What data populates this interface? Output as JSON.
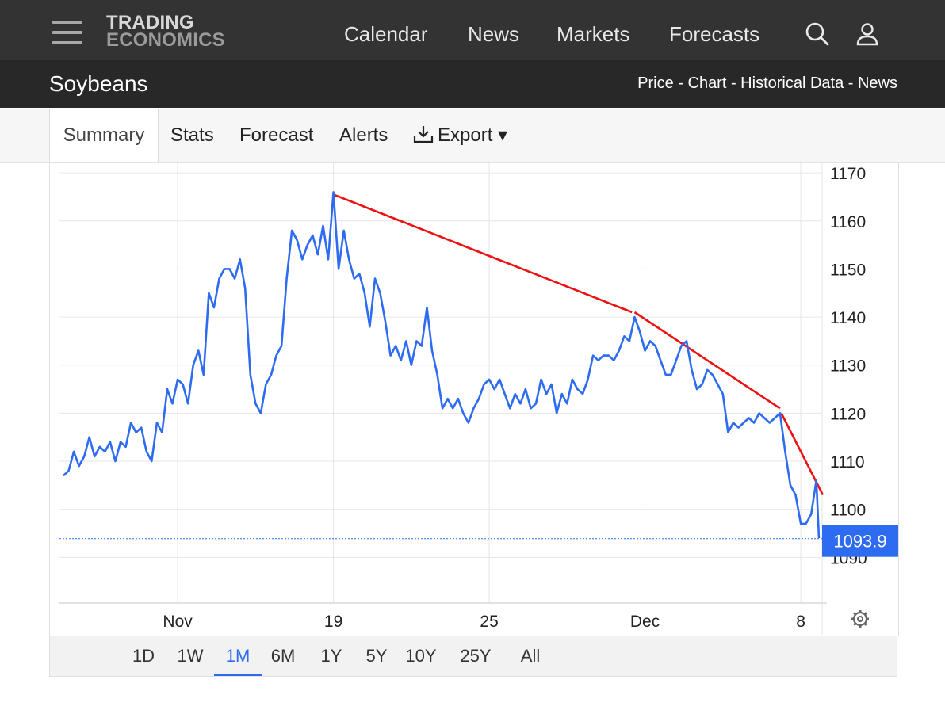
{
  "logo": {
    "line1": "TRADING",
    "line2": "ECONOMICS"
  },
  "nav": {
    "calendar": "Calendar",
    "news": "News",
    "markets": "Markets",
    "forecasts": "Forecasts"
  },
  "page": {
    "title": "Soybeans",
    "crumbs": "Price - Chart - Historical Data - News"
  },
  "tabs": {
    "summary": "Summary",
    "stats": "Stats",
    "forecast": "Forecast",
    "alerts": "Alerts",
    "export": "Export ▾"
  },
  "ranges": [
    "1D",
    "1W",
    "1M",
    "6M",
    "1Y",
    "5Y",
    "10Y",
    "25Y",
    "All"
  ],
  "active_range": "1M",
  "colors": {
    "price_line": "#2d6cf0",
    "trend_lines": "#ee1111",
    "last_price_tag": "#2d6cf0"
  },
  "chart_data": {
    "type": "line",
    "y_ticks": [
      1090,
      1100,
      1110,
      1120,
      1130,
      1140,
      1150,
      1160,
      1170
    ],
    "ylim": [
      1080,
      1172
    ],
    "x_tick_labels": [
      "Nov",
      "19",
      "25",
      "Dec",
      "8"
    ],
    "x_tick_positions_day": [
      13,
      19,
      25,
      31,
      37
    ],
    "xlim_day": [
      8.6,
      37.7
    ],
    "last_price": "1093.9",
    "grid": true,
    "series": [
      {
        "values": [
          [
            8.6,
            1107
          ],
          [
            8.8,
            1108
          ],
          [
            9.0,
            1112
          ],
          [
            9.2,
            1109
          ],
          [
            9.4,
            1111
          ],
          [
            9.6,
            1115
          ],
          [
            9.8,
            1111
          ],
          [
            10.0,
            1113
          ],
          [
            10.2,
            1112
          ],
          [
            10.4,
            1114
          ],
          [
            10.6,
            1110
          ],
          [
            10.8,
            1114
          ],
          [
            11.0,
            1113
          ],
          [
            11.2,
            1118
          ],
          [
            11.4,
            1116
          ],
          [
            11.6,
            1117
          ],
          [
            11.8,
            1112
          ],
          [
            12.0,
            1110
          ],
          [
            12.2,
            1118
          ],
          [
            12.4,
            1116
          ],
          [
            12.6,
            1125
          ],
          [
            12.8,
            1122
          ],
          [
            13.0,
            1127
          ],
          [
            13.2,
            1126
          ],
          [
            13.4,
            1122
          ],
          [
            13.6,
            1130
          ],
          [
            13.8,
            1133
          ],
          [
            14.0,
            1128
          ],
          [
            14.2,
            1145
          ],
          [
            14.4,
            1142
          ],
          [
            14.6,
            1148
          ],
          [
            14.8,
            1150
          ],
          [
            15.0,
            1150
          ],
          [
            15.2,
            1148
          ],
          [
            15.4,
            1152
          ],
          [
            15.6,
            1146
          ],
          [
            15.8,
            1128
          ],
          [
            16.0,
            1122
          ],
          [
            16.2,
            1120
          ],
          [
            16.4,
            1126
          ],
          [
            16.6,
            1128
          ],
          [
            16.8,
            1132
          ],
          [
            17.0,
            1134
          ],
          [
            17.2,
            1148
          ],
          [
            17.4,
            1158
          ],
          [
            17.6,
            1156
          ],
          [
            17.8,
            1152
          ],
          [
            18.0,
            1155
          ],
          [
            18.2,
            1157
          ],
          [
            18.4,
            1153
          ],
          [
            18.6,
            1159
          ],
          [
            18.8,
            1152
          ],
          [
            19.0,
            1166
          ],
          [
            19.2,
            1150
          ],
          [
            19.4,
            1158
          ],
          [
            19.6,
            1152
          ],
          [
            19.8,
            1148
          ],
          [
            20.0,
            1149
          ],
          [
            20.2,
            1145
          ],
          [
            20.4,
            1138
          ],
          [
            20.6,
            1148
          ],
          [
            20.8,
            1145
          ],
          [
            21.0,
            1139
          ],
          [
            21.2,
            1132
          ],
          [
            21.4,
            1134
          ],
          [
            21.6,
            1131
          ],
          [
            21.8,
            1135
          ],
          [
            22.0,
            1130
          ],
          [
            22.2,
            1135
          ],
          [
            22.4,
            1134
          ],
          [
            22.6,
            1142
          ],
          [
            22.8,
            1133
          ],
          [
            23.0,
            1128
          ],
          [
            23.2,
            1121
          ],
          [
            23.4,
            1123
          ],
          [
            23.6,
            1121
          ],
          [
            23.8,
            1123
          ],
          [
            24.0,
            1120
          ],
          [
            24.2,
            1118
          ],
          [
            24.4,
            1121
          ],
          [
            24.6,
            1123
          ],
          [
            24.8,
            1126
          ],
          [
            25.0,
            1127
          ],
          [
            25.2,
            1125
          ],
          [
            25.4,
            1127
          ],
          [
            25.6,
            1124
          ],
          [
            25.8,
            1121
          ],
          [
            26.0,
            1124
          ],
          [
            26.2,
            1122
          ],
          [
            26.4,
            1125
          ],
          [
            26.6,
            1121
          ],
          [
            26.8,
            1122
          ],
          [
            27.0,
            1127
          ],
          [
            27.2,
            1124
          ],
          [
            27.4,
            1126
          ],
          [
            27.6,
            1120
          ],
          [
            27.8,
            1124
          ],
          [
            28.0,
            1122
          ],
          [
            28.2,
            1127
          ],
          [
            28.4,
            1125
          ],
          [
            28.6,
            1124
          ],
          [
            28.8,
            1127
          ],
          [
            29.0,
            1132
          ],
          [
            29.2,
            1131
          ],
          [
            29.4,
            1132
          ],
          [
            29.6,
            1132
          ],
          [
            29.8,
            1131
          ],
          [
            30.0,
            1133
          ],
          [
            30.2,
            1136
          ],
          [
            30.4,
            1135
          ],
          [
            30.6,
            1140
          ],
          [
            30.8,
            1137
          ],
          [
            31.0,
            1133
          ],
          [
            31.2,
            1135
          ],
          [
            31.4,
            1134
          ],
          [
            31.6,
            1131
          ],
          [
            31.8,
            1128
          ],
          [
            32.0,
            1128
          ],
          [
            32.2,
            1131
          ],
          [
            32.4,
            1134
          ],
          [
            32.6,
            1135
          ],
          [
            32.8,
            1129
          ],
          [
            33.0,
            1125
          ],
          [
            33.2,
            1126
          ],
          [
            33.4,
            1129
          ],
          [
            33.6,
            1128
          ],
          [
            33.8,
            1126
          ],
          [
            34.0,
            1124
          ],
          [
            34.2,
            1116
          ],
          [
            34.4,
            1118
          ],
          [
            34.6,
            1117
          ],
          [
            34.8,
            1118
          ],
          [
            35.0,
            1119
          ],
          [
            35.2,
            1118
          ],
          [
            35.4,
            1120
          ],
          [
            35.6,
            1119
          ],
          [
            35.8,
            1118
          ],
          [
            36.0,
            1119
          ],
          [
            36.2,
            1120
          ],
          [
            36.4,
            1112
          ],
          [
            36.6,
            1105
          ],
          [
            36.8,
            1103
          ],
          [
            37.0,
            1097
          ],
          [
            37.2,
            1097
          ],
          [
            37.4,
            1099
          ],
          [
            37.6,
            1106
          ],
          [
            37.7,
            1094
          ]
        ]
      }
    ],
    "trend_lines": [
      [
        [
          19.0,
          1165.5
        ],
        [
          30.5,
          1141
        ]
      ],
      [
        [
          30.6,
          1141
        ],
        [
          36.2,
          1121
        ]
      ],
      [
        [
          36.25,
          1120
        ],
        [
          37.85,
          1103
        ]
      ]
    ]
  }
}
